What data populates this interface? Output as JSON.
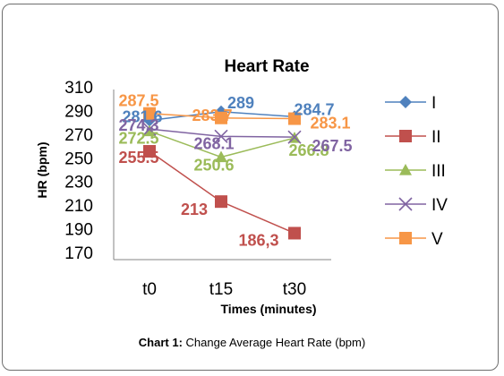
{
  "chart_data": {
    "type": "line",
    "title": "Heart Rate",
    "xlabel": "Times (minutes)",
    "ylabel": "HR (bpm)",
    "categories": [
      "t0",
      "t15",
      "t30"
    ],
    "ylim": [
      170,
      310
    ],
    "yticks": [
      "170",
      "190",
      "210",
      "230",
      "250",
      "270",
      "290",
      "310"
    ],
    "grid": false,
    "legend": "right",
    "series": [
      {
        "name": "I",
        "values": [
          281.6,
          289,
          284.7
        ],
        "labels": [
          "281.6",
          "289",
          "284.7"
        ],
        "color": "#4f81bd",
        "marker": "diamond"
      },
      {
        "name": "II",
        "values": [
          255.5,
          213,
          186.3
        ],
        "labels": [
          "255.5",
          "213",
          "186,3"
        ],
        "color": "#c0504d",
        "marker": "square"
      },
      {
        "name": "III",
        "values": [
          272.5,
          250.6,
          266.8
        ],
        "labels": [
          "272.5",
          "250.6",
          "266.8"
        ],
        "color": "#9bbb59",
        "marker": "triangle"
      },
      {
        "name": "IV",
        "values": [
          274.3,
          268.1,
          267.5
        ],
        "labels": [
          "274.3",
          "268.1",
          "267.5"
        ],
        "color": "#8064a2",
        "marker": "x"
      },
      {
        "name": "V",
        "values": [
          287.5,
          283.7,
          283.1
        ],
        "labels": [
          "287.5",
          "283.7",
          "283.1"
        ],
        "color": "#f79646",
        "marker": "square"
      }
    ]
  },
  "caption": {
    "label": "Chart 1:",
    "text": "Change Average Heart Rate (bpm)"
  }
}
